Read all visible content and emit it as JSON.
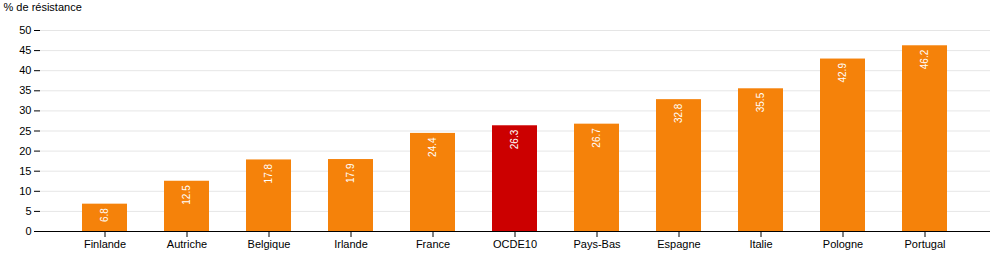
{
  "chart_data": {
    "type": "bar",
    "categories": [
      "Finlande",
      "Autriche",
      "Belgique",
      "Irlande",
      "France",
      "OCDE10",
      "Pays-Bas",
      "Espagne",
      "Italie",
      "Pologne",
      "Portugal"
    ],
    "values": [
      6.8,
      12.5,
      17.8,
      17.9,
      24.4,
      26.3,
      26.7,
      32.8,
      35.5,
      42.9,
      46.2
    ],
    "colors": [
      "#F5820A",
      "#F5820A",
      "#F5820A",
      "#F5820A",
      "#F5820A",
      "#CC0000",
      "#F5820A",
      "#F5820A",
      "#F5820A",
      "#F5820A",
      "#F5820A"
    ],
    "ylabel": "% de résistance",
    "ylim": [
      0,
      50
    ],
    "yticks": [
      0,
      5,
      10,
      15,
      20,
      25,
      30,
      35,
      40,
      45,
      50
    ],
    "grid": true,
    "data_labels": true
  }
}
